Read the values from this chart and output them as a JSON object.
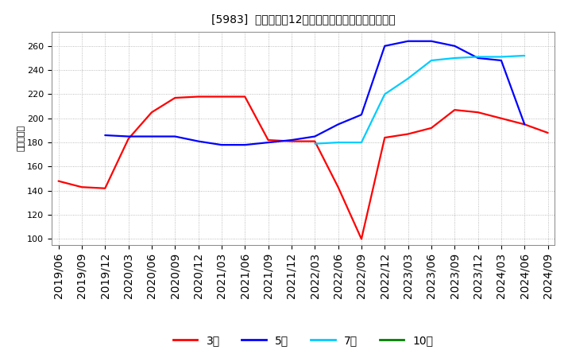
{
  "title": "[5983]  当期純利益12か月移動合計の標準偏差の推移",
  "ylabel": "（百万円）",
  "ylim": [
    95,
    272
  ],
  "yticks": [
    100,
    120,
    140,
    160,
    180,
    200,
    220,
    240,
    260
  ],
  "x_labels": [
    "2019/06",
    "2019/09",
    "2019/12",
    "2020/03",
    "2020/06",
    "2020/09",
    "2020/12",
    "2021/03",
    "2021/06",
    "2021/09",
    "2021/12",
    "2022/03",
    "2022/06",
    "2022/09",
    "2022/12",
    "2023/03",
    "2023/06",
    "2023/09",
    "2023/12",
    "2024/03",
    "2024/06",
    "2024/09"
  ],
  "series": {
    "3年": {
      "color": "#ff0000",
      "data": [
        148,
        143,
        142,
        183,
        205,
        217,
        218,
        218,
        218,
        182,
        181,
        181,
        143,
        100,
        184,
        187,
        192,
        207,
        205,
        200,
        195,
        188
      ]
    },
    "5年": {
      "color": "#0000ff",
      "data": [
        null,
        null,
        186,
        185,
        185,
        185,
        181,
        178,
        178,
        180,
        182,
        185,
        195,
        203,
        260,
        264,
        264,
        260,
        250,
        248,
        195,
        null
      ]
    },
    "7年": {
      "color": "#00ccff",
      "data": [
        null,
        null,
        null,
        null,
        null,
        null,
        null,
        null,
        null,
        null,
        null,
        179,
        180,
        180,
        220,
        233,
        248,
        250,
        251,
        251,
        252,
        null
      ]
    },
    "10年": {
      "color": "#008000",
      "data": [
        null,
        null,
        null,
        null,
        null,
        null,
        null,
        null,
        null,
        null,
        null,
        null,
        null,
        null,
        null,
        null,
        null,
        null,
        null,
        null,
        null,
        null
      ]
    }
  },
  "background_color": "#ffffff",
  "grid_color": "#aaaaaa",
  "title_fontsize": 11,
  "legend_labels": [
    "3年",
    "5年",
    "7年",
    "10年"
  ],
  "legend_colors": [
    "#ff0000",
    "#0000ff",
    "#00ccff",
    "#008000"
  ]
}
